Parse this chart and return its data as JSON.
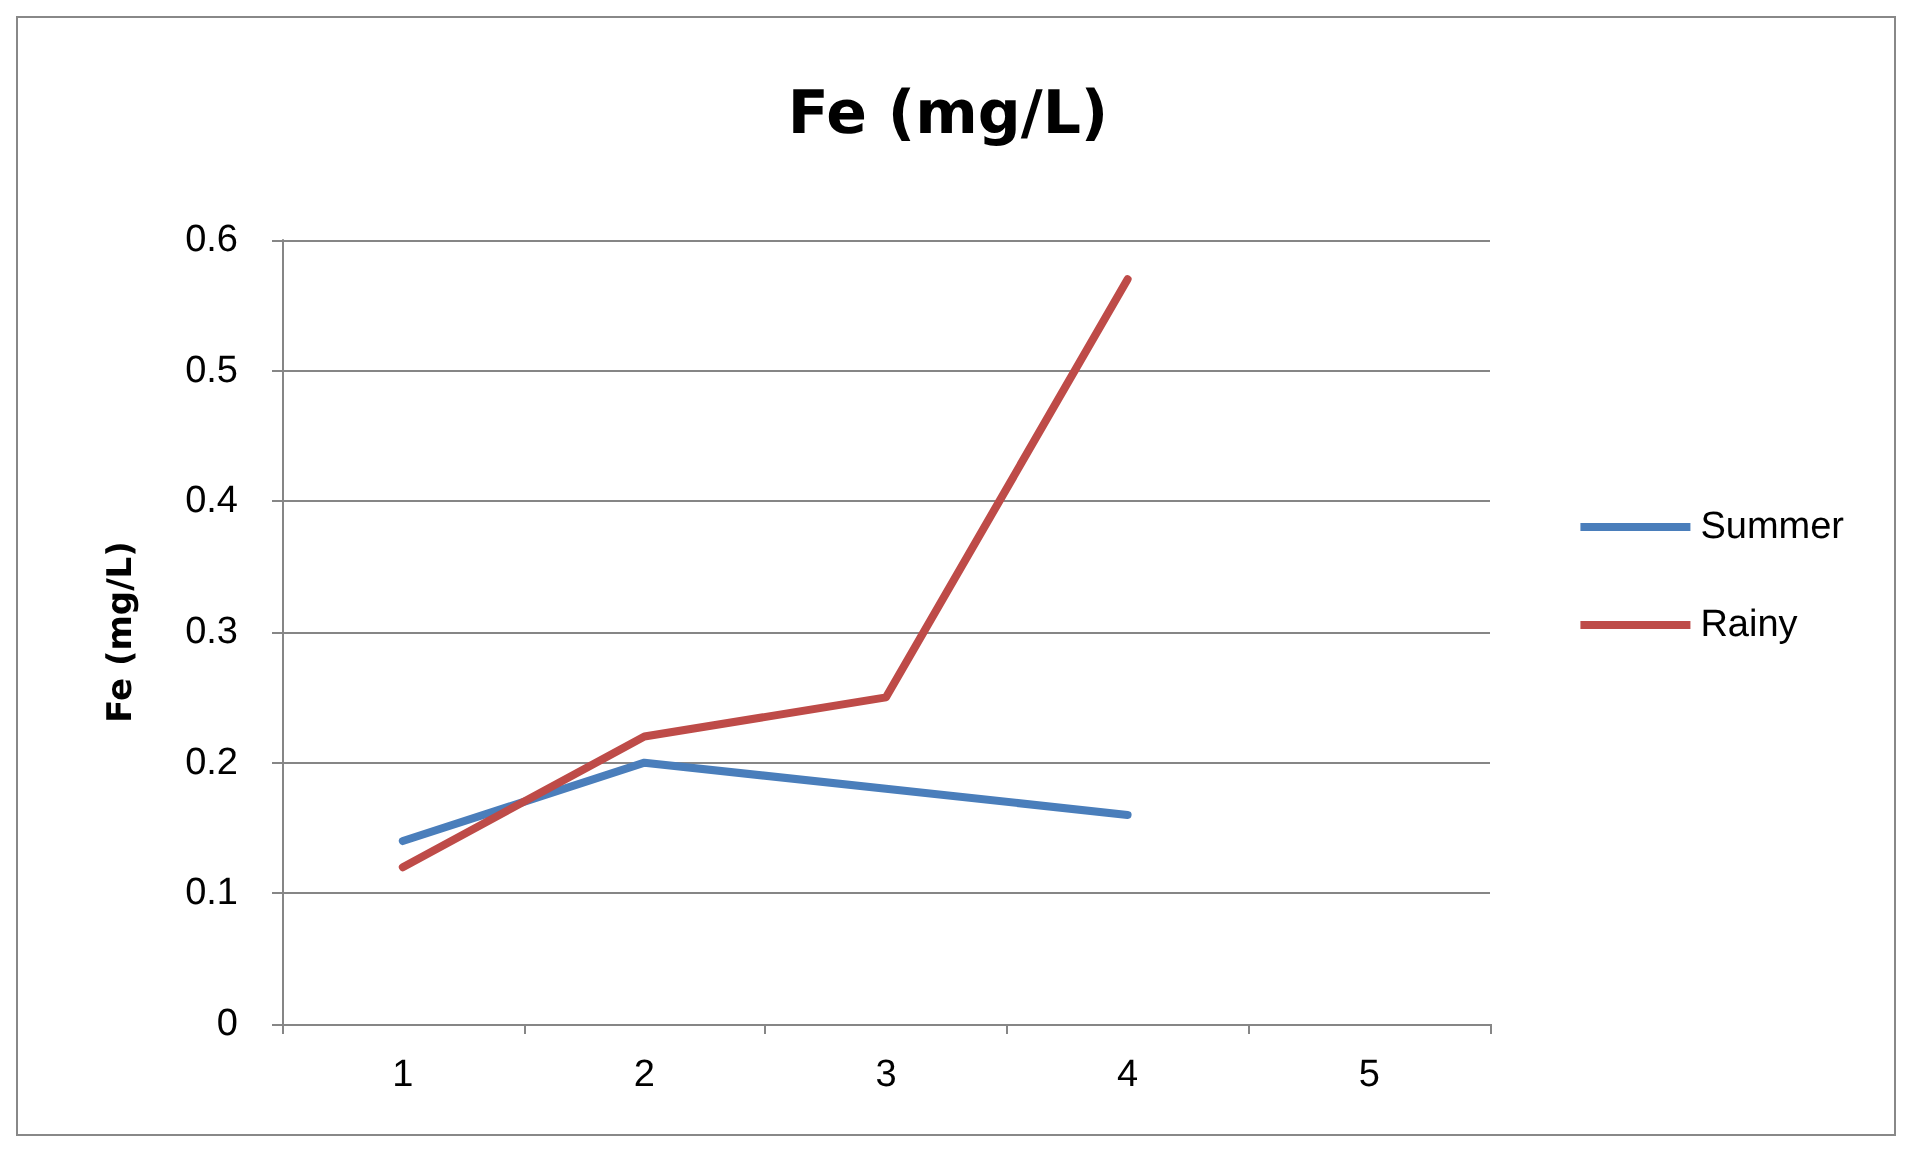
{
  "chart_data": {
    "type": "line",
    "title": "Fe (mg/L)",
    "ylabel": "Fe (mg/L)",
    "categories": [
      "1",
      "2",
      "3",
      "4",
      "5"
    ],
    "series": [
      {
        "name": "Summer",
        "color": "#4a7ebb",
        "values": [
          0.14,
          0.2,
          0.18,
          0.16,
          null
        ]
      },
      {
        "name": "Rainy",
        "color": "#be4b48",
        "values": [
          0.12,
          0.22,
          0.25,
          0.57,
          null
        ]
      }
    ],
    "ylim": [
      0,
      0.6
    ],
    "yticks": [
      0,
      0.1,
      0.2,
      0.3,
      0.4,
      0.5,
      0.6
    ],
    "grid": "y",
    "legend": "right",
    "marker": "none",
    "line_style": "solid"
  }
}
